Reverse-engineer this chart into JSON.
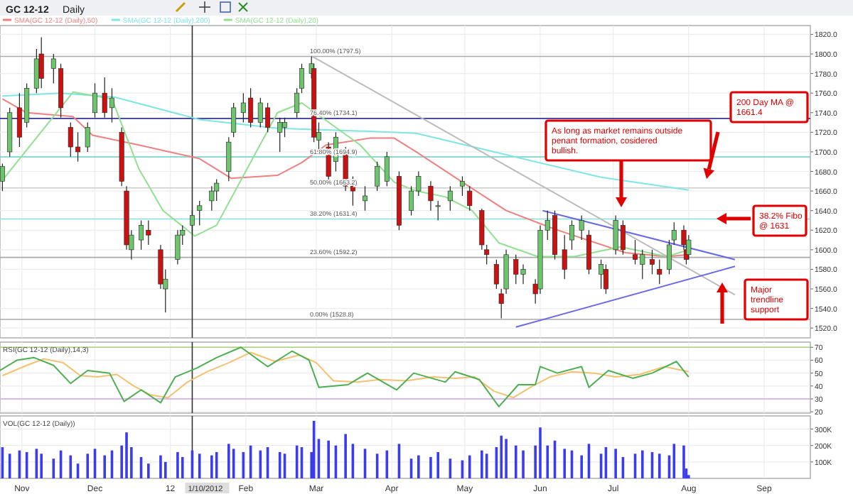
{
  "chart_data": [
    {
      "type": "candlestick",
      "title": "GC 12-12",
      "subtitle": "Daily",
      "marker": "none",
      "line_style": "solid",
      "grid": true,
      "legend": "top left",
      "tick_labels": "y",
      "xlim": [
        "2011-10-23",
        "2012-09-20"
      ],
      "xticks": [
        {
          "value": "2011-11-01",
          "label": null
        },
        {
          "value": "2011-12-01",
          "label": null
        },
        {
          "value": "2012-01-01",
          "label": null
        },
        {
          "value": "2012-02-01",
          "label": null
        },
        {
          "value": "2012-03-01",
          "label": null
        },
        {
          "value": "2012-04-01",
          "label": null
        },
        {
          "value": "2012-05-01",
          "label": null
        },
        {
          "value": "2012-06-01",
          "label": null
        },
        {
          "value": "2012-07-01",
          "label": null
        },
        {
          "value": "2012-08-01",
          "label": null
        },
        {
          "value": "2012-09-01",
          "label": null
        }
      ],
      "ylim": [
        1510,
        1829
      ],
      "yticks": [
        {
          "value": 1520,
          "label": "1520.0"
        },
        {
          "value": 1540,
          "label": "1540.0"
        },
        {
          "value": 1560,
          "label": "1560.0"
        },
        {
          "value": 1580,
          "label": "1580.0"
        },
        {
          "value": 1600,
          "label": "1600.0"
        },
        {
          "value": 1620,
          "label": "1620.0"
        },
        {
          "value": 1640,
          "label": "1640.0"
        },
        {
          "value": 1660,
          "label": "1660.0"
        },
        {
          "value": 1680,
          "label": "1680.0"
        },
        {
          "value": 1700,
          "label": "1700.0"
        },
        {
          "value": 1720,
          "label": "1720.0"
        },
        {
          "value": 1740,
          "label": "1740.0"
        },
        {
          "value": 1760,
          "label": "1760.0"
        },
        {
          "value": 1780,
          "label": "1780.0"
        },
        {
          "value": 1800,
          "label": "1800.0"
        },
        {
          "value": 1820,
          "label": "1820.0"
        }
      ],
      "x": [
        "2011-10-24",
        "2011-10-27",
        "2011-10-31",
        "2011-11-03",
        "2011-11-07",
        "2011-11-09",
        "2011-11-14",
        "2011-11-17",
        "2011-11-21",
        "2011-11-24",
        "2011-11-28",
        "2011-12-01",
        "2011-12-05",
        "2011-12-08",
        "2011-12-12",
        "2011-12-14",
        "2011-12-16",
        "2011-12-20",
        "2011-12-23",
        "2011-12-28",
        "2011-12-30",
        "2012-01-04",
        "2012-01-06",
        "2012-01-10",
        "2012-01-13",
        "2012-01-18",
        "2012-01-20",
        "2012-01-25",
        "2012-01-27",
        "2012-01-31",
        "2012-02-03",
        "2012-02-07",
        "2012-02-10",
        "2012-02-15",
        "2012-02-17",
        "2012-02-22",
        "2012-02-24",
        "2012-02-28",
        "2012-02-29",
        "2012-03-02",
        "2012-03-06",
        "2012-03-09",
        "2012-03-13",
        "2012-03-16",
        "2012-03-21",
        "2012-03-26",
        "2012-03-30",
        "2012-04-04",
        "2012-04-09",
        "2012-04-12",
        "2012-04-17",
        "2012-04-20",
        "2012-04-25",
        "2012-04-30",
        "2012-05-03",
        "2012-05-08",
        "2012-05-10",
        "2012-05-14",
        "2012-05-16",
        "2012-05-18",
        "2012-05-22",
        "2012-05-25",
        "2012-05-30",
        "2012-06-01",
        "2012-06-04",
        "2012-06-07",
        "2012-06-11",
        "2012-06-14",
        "2012-06-18",
        "2012-06-21",
        "2012-06-26",
        "2012-06-28",
        "2012-07-02",
        "2012-07-05",
        "2012-07-10",
        "2012-07-13",
        "2012-07-17",
        "2012-07-20",
        "2012-07-24",
        "2012-07-26",
        "2012-07-30",
        "2012-07-31",
        "2012-08-01"
      ],
      "ohlc": [
        [
          1670,
          1688,
          1660,
          1685
        ],
        [
          1700,
          1745,
          1695,
          1740
        ],
        [
          1745,
          1760,
          1705,
          1715
        ],
        [
          1730,
          1770,
          1725,
          1765
        ],
        [
          1765,
          1805,
          1760,
          1795
        ],
        [
          1800,
          1817,
          1765,
          1775
        ],
        [
          1785,
          1800,
          1770,
          1795
        ],
        [
          1785,
          1790,
          1735,
          1745
        ],
        [
          1725,
          1730,
          1695,
          1705
        ],
        [
          1705,
          1720,
          1690,
          1700
        ],
        [
          1705,
          1730,
          1700,
          1725
        ],
        [
          1740,
          1770,
          1735,
          1760
        ],
        [
          1760,
          1776,
          1735,
          1740
        ],
        [
          1745,
          1765,
          1730,
          1755
        ],
        [
          1720,
          1725,
          1665,
          1670
        ],
        [
          1660,
          1665,
          1600,
          1605
        ],
        [
          1600,
          1620,
          1590,
          1615
        ],
        [
          1610,
          1630,
          1600,
          1625
        ],
        [
          1620,
          1630,
          1605,
          1615
        ],
        [
          1600,
          1605,
          1560,
          1565
        ],
        [
          1560,
          1580,
          1536,
          1570
        ],
        [
          1590,
          1620,
          1585,
          1615
        ],
        [
          1615,
          1625,
          1605,
          1620
        ],
        [
          1625,
          1640,
          1615,
          1635
        ],
        [
          1640,
          1650,
          1625,
          1645
        ],
        [
          1650,
          1665,
          1640,
          1660
        ],
        [
          1660,
          1672,
          1650,
          1668
        ],
        [
          1680,
          1715,
          1670,
          1710
        ],
        [
          1720,
          1750,
          1715,
          1745
        ],
        [
          1740,
          1760,
          1730,
          1750
        ],
        [
          1755,
          1765,
          1725,
          1730
        ],
        [
          1730,
          1755,
          1725,
          1750
        ],
        [
          1745,
          1750,
          1720,
          1725
        ],
        [
          1720,
          1735,
          1700,
          1730
        ],
        [
          1725,
          1735,
          1715,
          1730
        ],
        [
          1740,
          1765,
          1735,
          1760
        ],
        [
          1765,
          1790,
          1760,
          1785
        ],
        [
          1780,
          1797.5,
          1775,
          1790
        ],
        [
          1785,
          1790,
          1710,
          1715
        ],
        [
          1712,
          1730,
          1700,
          1720
        ],
        [
          1705,
          1710,
          1670,
          1675
        ],
        [
          1690,
          1720,
          1680,
          1715
        ],
        [
          1700,
          1705,
          1660,
          1665
        ],
        [
          1665,
          1675,
          1645,
          1660
        ],
        [
          1650,
          1665,
          1640,
          1655
        ],
        [
          1665,
          1690,
          1660,
          1685
        ],
        [
          1670,
          1700,
          1665,
          1695
        ],
        [
          1675,
          1680,
          1620,
          1625
        ],
        [
          1640,
          1665,
          1635,
          1660
        ],
        [
          1660,
          1680,
          1655,
          1675
        ],
        [
          1665,
          1670,
          1640,
          1650
        ],
        [
          1645,
          1650,
          1630,
          1645
        ],
        [
          1650,
          1665,
          1640,
          1660
        ],
        [
          1665,
          1675,
          1655,
          1670
        ],
        [
          1660,
          1665,
          1640,
          1645
        ],
        [
          1640,
          1642,
          1600,
          1605
        ],
        [
          1600,
          1605,
          1585,
          1595
        ],
        [
          1585,
          1590,
          1560,
          1565
        ],
        [
          1555,
          1560,
          1530,
          1545
        ],
        [
          1560,
          1600,
          1555,
          1595
        ],
        [
          1590,
          1595,
          1565,
          1575
        ],
        [
          1575,
          1585,
          1565,
          1580
        ],
        [
          1565,
          1570,
          1545,
          1555
        ],
        [
          1560,
          1625,
          1555,
          1620
        ],
        [
          1620,
          1640,
          1610,
          1630
        ],
        [
          1635,
          1640,
          1590,
          1595
        ],
        [
          1600,
          1615,
          1570,
          1580
        ],
        [
          1610,
          1630,
          1600,
          1625
        ],
        [
          1620,
          1635,
          1610,
          1630
        ],
        [
          1615,
          1620,
          1575,
          1580
        ],
        [
          1575,
          1590,
          1560,
          1585
        ],
        [
          1580,
          1585,
          1555,
          1560
        ],
        [
          1600,
          1635,
          1595,
          1630
        ],
        [
          1625,
          1630,
          1595,
          1600
        ],
        [
          1595,
          1610,
          1585,
          1590
        ],
        [
          1585,
          1600,
          1570,
          1595
        ],
        [
          1590,
          1600,
          1575,
          1585
        ],
        [
          1580,
          1590,
          1565,
          1575
        ],
        [
          1580,
          1610,
          1575,
          1605
        ],
        [
          1610,
          1628,
          1605,
          1620
        ],
        [
          1620,
          1625,
          1600,
          1605
        ],
        [
          1600,
          1605,
          1585,
          1590
        ],
        [
          1595,
          1615,
          1590,
          1610
        ]
      ],
      "series": [
        {
          "name": "SMA(GC 12-12 (Daily),50)",
          "type": "line",
          "color": "#f08080",
          "x": [
            "2011-10-24",
            "2011-11-03",
            "2011-11-22",
            "2011-11-30",
            "2011-12-19",
            "2012-01-13",
            "2012-01-26",
            "2012-02-14",
            "2012-02-24",
            "2012-03-05",
            "2012-03-23",
            "2012-04-02",
            "2012-04-11",
            "2012-04-30",
            "2012-05-18",
            "2012-06-07",
            "2012-07-06",
            "2012-07-23",
            "2012-08-01"
          ],
          "values": [
            1754,
            1740,
            1736,
            1717,
            1707,
            1693,
            1673,
            1676,
            1689,
            1707,
            1714,
            1714,
            1700,
            1669,
            1640,
            1621,
            1597,
            1593,
            1595
          ]
        },
        {
          "name": "SMA(GC 12-12 (Daily),200)",
          "type": "line",
          "color": "#7fe5e5",
          "x": [
            "2011-10-24",
            "2011-11-17",
            "2011-12-09",
            "2012-01-13",
            "2012-02-14",
            "2012-03-23",
            "2012-04-11",
            "2012-05-18",
            "2012-06-26",
            "2012-08-01"
          ],
          "values": [
            1757,
            1760,
            1756,
            1733,
            1724,
            1721,
            1719,
            1697,
            1674,
            1661
          ]
        },
        {
          "name": "SMA(GC 12-12 (Daily),20)",
          "type": "line",
          "color": "#90e090",
          "x": [
            "2011-10-24",
            "2011-11-22",
            "2011-12-08",
            "2011-12-19",
            "2011-12-29",
            "2012-01-11",
            "2012-01-20",
            "2012-02-14",
            "2012-02-24",
            "2012-03-19",
            "2012-04-02",
            "2012-04-11",
            "2012-04-23",
            "2012-05-04",
            "2012-05-15",
            "2012-05-31",
            "2012-06-15",
            "2012-07-04",
            "2012-07-23",
            "2012-08-01"
          ],
          "values": [
            1671,
            1761,
            1754,
            1683,
            1640,
            1614,
            1625,
            1740,
            1750,
            1707,
            1669,
            1660,
            1654,
            1640,
            1607,
            1593,
            1593,
            1603,
            1593,
            1600
          ]
        },
        {
          "type": "line",
          "color": "#bbbbbb",
          "x": [
            "2012-02-28",
            "2012-08-20"
          ],
          "values": [
            1798,
            1554
          ]
        },
        {
          "type": "line",
          "color": "#6a6ae8",
          "x": [
            "2012-06-02",
            "2012-08-20"
          ],
          "values": [
            1640,
            1590
          ]
        },
        {
          "type": "line",
          "color": "#6a6ae8",
          "x": [
            "2012-05-22",
            "2012-08-20"
          ],
          "values": [
            1521,
            1583
          ]
        }
      ],
      "ref_lines": [
        {
          "axis": "y",
          "value": 1797.5,
          "label": "100.00% (1797.5)",
          "color": "#aaaaaa"
        },
        {
          "axis": "y",
          "value": 1734.1,
          "label": "76.40% (1734.1)",
          "color": "#333399"
        },
        {
          "axis": "y",
          "value": 1694.9,
          "label": "61.80% (1694.9)",
          "color": "#66cccc"
        },
        {
          "axis": "y",
          "value": 1663.2,
          "label": "50.00% (1663.2)",
          "color": "#cccccc"
        },
        {
          "axis": "y",
          "value": 1631.4,
          "label": "38.20% (1631.4)",
          "color": "#88dddd"
        },
        {
          "axis": "y",
          "value": 1592.2,
          "label": "23.60% (1592.2)",
          "color": "#aaaaaa"
        },
        {
          "axis": "y",
          "value": 1528.8,
          "label": "0.00% (1528.8)",
          "color": "#aaaaaa"
        },
        {
          "axis": "x",
          "value": "2012-01-10",
          "color": "#333333"
        }
      ],
      "annotations": [
        "200 Day MA @ 1661.4",
        "As long as market remains outside penant formation, cosidered bullish.",
        "38.2% Fibo @ 1631",
        "Major trendline support"
      ]
    },
    {
      "type": "line",
      "title": "RSI(GC 12-12 (Daily),14,3)",
      "marker": "none",
      "line_style": "solid",
      "grid": true,
      "tick_labels": "y",
      "xlim": [
        "2011-10-23",
        "2012-09-20"
      ],
      "xticks": [
        {
          "value": "2011-11-01",
          "label": null
        },
        {
          "value": "2011-12-01",
          "label": null
        },
        {
          "value": "2012-01-01",
          "label": null
        },
        {
          "value": "2012-02-01",
          "label": null
        },
        {
          "value": "2012-03-01",
          "label": null
        },
        {
          "value": "2012-04-01",
          "label": null
        },
        {
          "value": "2012-05-01",
          "label": null
        },
        {
          "value": "2012-06-01",
          "label": null
        },
        {
          "value": "2012-07-01",
          "label": null
        },
        {
          "value": "2012-08-01",
          "label": null
        },
        {
          "value": "2012-09-01",
          "label": null
        }
      ],
      "ylim": [
        19,
        74
      ],
      "yticks": [
        20,
        30,
        40,
        50,
        60,
        70
      ],
      "series": [
        {
          "color": "#f5c070",
          "x": [
            "2011-10-24",
            "2011-11-03",
            "2011-11-10",
            "2011-11-18",
            "2011-11-25",
            "2011-12-02",
            "2011-12-10",
            "2011-12-17",
            "2011-12-24",
            "2011-12-31",
            "2012-01-08",
            "2012-01-16",
            "2012-01-25",
            "2012-02-03",
            "2012-02-13",
            "2012-02-23",
            "2012-03-01",
            "2012-03-08",
            "2012-03-18",
            "2012-03-27",
            "2012-04-07",
            "2012-04-18",
            "2012-04-27",
            "2012-05-05",
            "2012-05-13",
            "2012-05-21",
            "2012-05-28",
            "2012-06-05",
            "2012-06-14",
            "2012-06-23",
            "2012-07-02",
            "2012-07-12",
            "2012-07-22",
            "2012-08-01"
          ],
          "values": [
            48,
            56,
            61,
            58,
            48,
            47,
            49,
            40,
            33,
            31,
            43,
            51,
            58,
            66,
            59,
            64,
            58,
            44,
            43,
            45,
            44,
            47,
            46,
            47,
            36,
            31,
            39,
            47,
            51,
            50,
            47,
            49,
            55,
            51
          ]
        },
        {
          "color": "#4caf50",
          "x": [
            "2011-10-23",
            "2011-10-30",
            "2011-11-06",
            "2011-11-14",
            "2011-11-21",
            "2011-11-28",
            "2011-12-07",
            "2011-12-13",
            "2011-12-20",
            "2011-12-28",
            "2012-01-03",
            "2012-01-12",
            "2012-01-20",
            "2012-01-30",
            "2012-02-10",
            "2012-02-20",
            "2012-02-27",
            "2012-03-02",
            "2012-03-14",
            "2012-03-22",
            "2012-04-03",
            "2012-04-10",
            "2012-04-23",
            "2012-04-27",
            "2012-05-07",
            "2012-05-15",
            "2012-05-23",
            "2012-05-30",
            "2012-06-01",
            "2012-06-08",
            "2012-06-18",
            "2012-06-21",
            "2012-06-29",
            "2012-07-09",
            "2012-07-17",
            "2012-07-27",
            "2012-08-01"
          ],
          "values": [
            52,
            60,
            62,
            56,
            42,
            52,
            50,
            28,
            37,
            27,
            47,
            54,
            62,
            70,
            55,
            67,
            60,
            39,
            41,
            50,
            37,
            50,
            43,
            51,
            45,
            24,
            41,
            41,
            55,
            50,
            55,
            39,
            52,
            46,
            50,
            59,
            47
          ]
        }
      ],
      "ref_lines": [
        {
          "axis": "y",
          "value": 70,
          "color": "#a8d080"
        },
        {
          "axis": "y",
          "value": 30,
          "color": "#d6a0f0"
        },
        {
          "axis": "x",
          "value": "2012-01-10",
          "color": "#333333"
        }
      ]
    },
    {
      "type": "bar",
      "title": "VOL(GC 12-12 (Daily))",
      "color": "#3b3bf0",
      "grid": true,
      "xlim": [
        "2011-10-23",
        "2012-09-20"
      ],
      "xticks": [
        {
          "value": "2011-11-01",
          "label": "Nov"
        },
        {
          "value": "2011-12-01",
          "label": "Dec"
        },
        {
          "value": "2012-01-01",
          "label": "12"
        },
        {
          "value": "2012-02-01",
          "label": "Feb"
        },
        {
          "value": "2012-03-01",
          "label": "Mar"
        },
        {
          "value": "2012-04-01",
          "label": "Apr"
        },
        {
          "value": "2012-05-01",
          "label": "May"
        },
        {
          "value": "2012-06-01",
          "label": "Jun"
        },
        {
          "value": "2012-07-01",
          "label": "Jul"
        },
        {
          "value": "2012-08-01",
          "label": "Aug"
        },
        {
          "value": "2012-09-01",
          "label": "Sep"
        }
      ],
      "ylim": [
        0,
        380000
      ],
      "yticks": [
        {
          "value": 100000,
          "label": "100K"
        },
        {
          "value": 200000,
          "label": "200K"
        },
        {
          "value": 300000,
          "label": "300K"
        }
      ],
      "x": [
        "2011-10-24",
        "2011-10-27",
        "2011-10-31",
        "2011-11-03",
        "2011-11-07",
        "2011-11-09",
        "2011-11-14",
        "2011-11-17",
        "2011-11-21",
        "2011-11-24",
        "2011-11-28",
        "2011-12-01",
        "2011-12-05",
        "2011-12-08",
        "2011-12-12",
        "2011-12-14",
        "2011-12-16",
        "2011-12-20",
        "2011-12-23",
        "2011-12-28",
        "2011-12-30",
        "2012-01-04",
        "2012-01-06",
        "2012-01-10",
        "2012-01-13",
        "2012-01-18",
        "2012-01-20",
        "2012-01-25",
        "2012-01-27",
        "2012-01-31",
        "2012-02-03",
        "2012-02-07",
        "2012-02-10",
        "2012-02-15",
        "2012-02-17",
        "2012-02-22",
        "2012-02-24",
        "2012-02-28",
        "2012-02-29",
        "2012-03-02",
        "2012-03-06",
        "2012-03-09",
        "2012-03-13",
        "2012-03-16",
        "2012-03-21",
        "2012-03-26",
        "2012-03-30",
        "2012-04-04",
        "2012-04-09",
        "2012-04-12",
        "2012-04-17",
        "2012-04-20",
        "2012-04-25",
        "2012-04-30",
        "2012-05-03",
        "2012-05-08",
        "2012-05-10",
        "2012-05-14",
        "2012-05-16",
        "2012-05-18",
        "2012-05-22",
        "2012-05-25",
        "2012-05-30",
        "2012-06-01",
        "2012-06-04",
        "2012-06-07",
        "2012-06-11",
        "2012-06-14",
        "2012-06-18",
        "2012-06-21",
        "2012-06-26",
        "2012-06-28",
        "2012-07-02",
        "2012-07-05",
        "2012-07-10",
        "2012-07-13",
        "2012-07-17",
        "2012-07-20",
        "2012-07-24",
        "2012-07-26",
        "2012-07-30",
        "2012-07-31",
        "2012-08-01"
      ],
      "values": [
        190000,
        150000,
        170000,
        160000,
        180000,
        150000,
        120000,
        170000,
        140000,
        90000,
        150000,
        180000,
        140000,
        170000,
        200000,
        280000,
        190000,
        130000,
        90000,
        140000,
        100000,
        160000,
        130000,
        170000,
        150000,
        140000,
        160000,
        210000,
        180000,
        160000,
        200000,
        170000,
        190000,
        160000,
        150000,
        200000,
        190000,
        160000,
        350000,
        240000,
        230000,
        200000,
        270000,
        210000,
        180000,
        150000,
        170000,
        210000,
        120000,
        140000,
        130000,
        160000,
        120000,
        110000,
        140000,
        170000,
        150000,
        190000,
        260000,
        240000,
        200000,
        170000,
        200000,
        310000,
        200000,
        230000,
        180000,
        170000,
        140000,
        210000,
        150000,
        190000,
        180000,
        130000,
        150000,
        170000,
        160000,
        150000,
        140000,
        210000,
        200000,
        60000,
        20000
      ],
      "ref_lines": [
        {
          "axis": "x",
          "value": "2012-01-10",
          "label": "1/10/2012",
          "color": "#333333"
        }
      ]
    }
  ]
}
